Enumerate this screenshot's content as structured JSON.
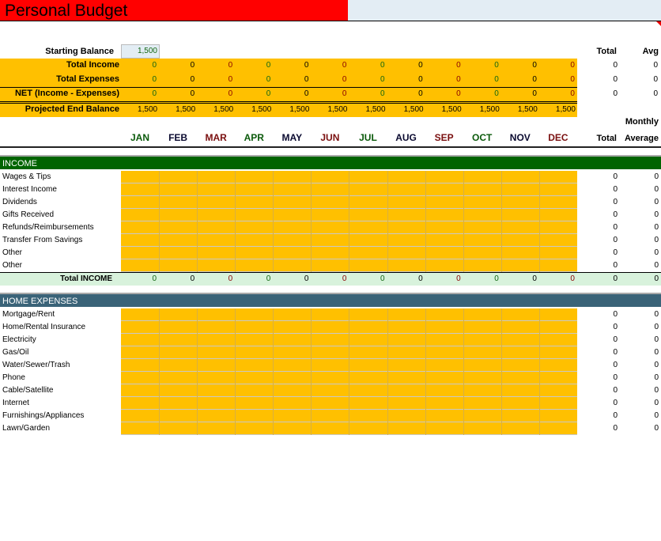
{
  "title": "Personal Budget",
  "colors": {
    "title_bg": "#ff0000",
    "input_fill": "#ffc000",
    "income_band": "#006400",
    "home_band": "#3a6378",
    "total_row": "#d8f2dc",
    "green": "#116611",
    "red": "#8b0000"
  },
  "summary": {
    "starting_balance_label": "Starting Balance",
    "starting_balance": "1,500",
    "total_header": "Total",
    "avg_header": "Avg",
    "rows": [
      {
        "label": "Total Income",
        "values": [
          "0",
          "0",
          "0",
          "0",
          "0",
          "0",
          "0",
          "0",
          "0",
          "0",
          "0",
          "0"
        ],
        "total": "0",
        "avg": "0"
      },
      {
        "label": "Total Expenses",
        "values": [
          "0",
          "0",
          "0",
          "0",
          "0",
          "0",
          "0",
          "0",
          "0",
          "0",
          "0",
          "0"
        ],
        "total": "0",
        "avg": "0"
      },
      {
        "label": "NET (Income - Expenses)",
        "values": [
          "0",
          "0",
          "0",
          "0",
          "0",
          "0",
          "0",
          "0",
          "0",
          "0",
          "0",
          "0"
        ],
        "total": "0",
        "avg": "0"
      }
    ],
    "projected": {
      "label": "Projected End Balance",
      "values": [
        "1,500",
        "1,500",
        "1,500",
        "1,500",
        "1,500",
        "1,500",
        "1,500",
        "1,500",
        "1,500",
        "1,500",
        "1,500",
        "1,500"
      ]
    }
  },
  "months": [
    "JAN",
    "FEB",
    "MAR",
    "APR",
    "MAY",
    "JUN",
    "JUL",
    "AUG",
    "SEP",
    "OCT",
    "NOV",
    "DEC"
  ],
  "col_headers": {
    "monthly": "Monthly",
    "total": "Total",
    "average": "Average"
  },
  "income": {
    "header": "INCOME",
    "items": [
      "Wages & Tips",
      "Interest Income",
      "Dividends",
      "Gifts Received",
      "Refunds/Reimbursements",
      "Transfer From Savings",
      "Other",
      "Other"
    ],
    "item_total": "0",
    "item_avg": "0",
    "total_label": "Total INCOME",
    "totals": [
      "0",
      "0",
      "0",
      "0",
      "0",
      "0",
      "0",
      "0",
      "0",
      "0",
      "0",
      "0"
    ],
    "total": "0",
    "avg": "0"
  },
  "home": {
    "header": "HOME EXPENSES",
    "items": [
      "Mortgage/Rent",
      "Home/Rental Insurance",
      "Electricity",
      "Gas/Oil",
      "Water/Sewer/Trash",
      "Phone",
      "Cable/Satellite",
      "Internet",
      "Furnishings/Appliances",
      "Lawn/Garden"
    ],
    "item_total": "0",
    "item_avg": "0"
  }
}
